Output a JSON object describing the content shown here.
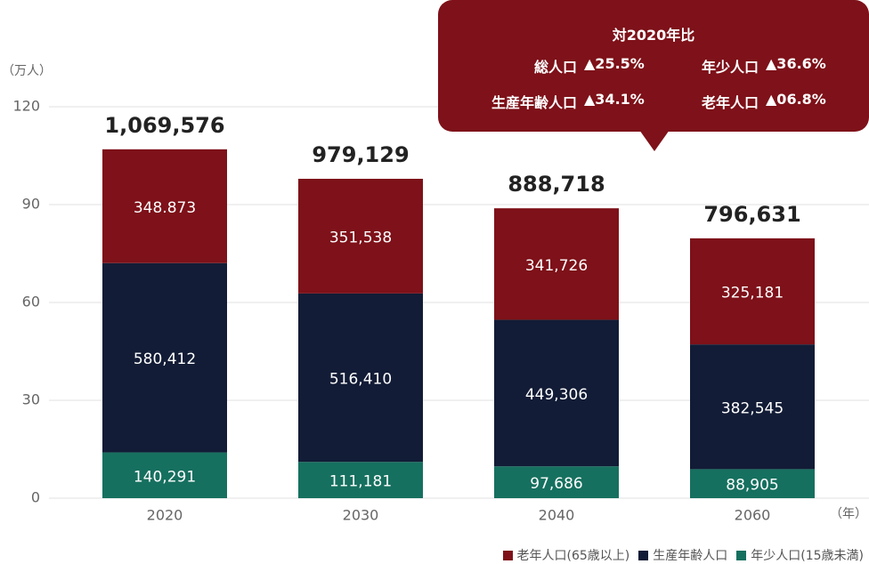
{
  "chart_data": {
    "type": "stacked_bar",
    "y_label": "（万人）",
    "x_label": "（年）",
    "categories": [
      "2020",
      "2030",
      "2040",
      "2060"
    ],
    "series": [
      {
        "name": "年少人口(15歳未満)",
        "color": "#16705f",
        "values": [
          14.0291,
          11.1181,
          9.7686,
          8.8905
        ],
        "value_labels": [
          "140,291",
          "111,181",
          "97,686",
          "88,905"
        ]
      },
      {
        "name": "生産年齢人口",
        "color": "#121c36",
        "values": [
          58.0412,
          51.641,
          44.9306,
          38.2545
        ],
        "value_labels": [
          "580,412",
          "516,410",
          "449,306",
          "382,545"
        ]
      },
      {
        "name": "老年人口(65歳以上)",
        "color": "#7e1119",
        "values": [
          34.8873,
          35.1538,
          34.1726,
          32.5181
        ],
        "value_labels": [
          "348.873",
          "351,538",
          "341,726",
          "325,181"
        ]
      }
    ],
    "totals": {
      "values": [
        106.9576,
        97.9129,
        88.8718,
        79.6631
      ],
      "value_labels": [
        "1,069,576",
        "979,129",
        "888,718",
        "796,631"
      ]
    },
    "ylim": [
      0,
      120
    ],
    "yticks": [
      0,
      30,
      60,
      90,
      120
    ],
    "grid": true,
    "callout": {
      "title": "対2020年比",
      "items": [
        {
          "label": "総人口",
          "value": "▲25.5%"
        },
        {
          "label": "年少人口",
          "value": "▲36.6%"
        },
        {
          "label": "生産年齢人口",
          "value": "▲34.1%"
        },
        {
          "label": "老年人口",
          "value": "▲06.8%"
        }
      ]
    }
  }
}
